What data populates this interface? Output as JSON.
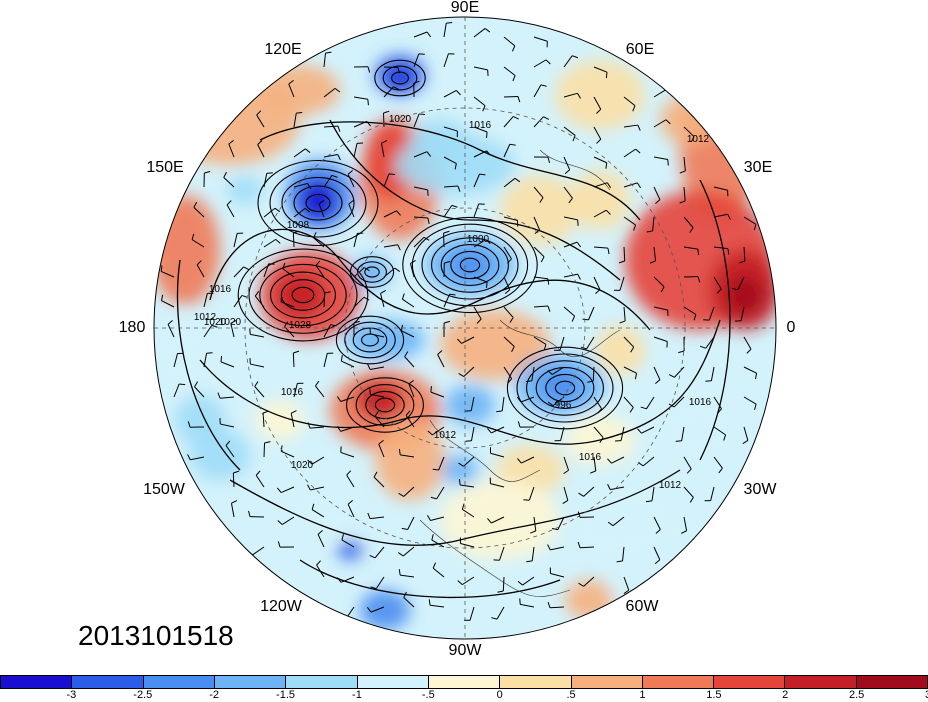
{
  "timestamp": "2013101518",
  "longitude_labels": {
    "lon_90e": "90E",
    "lon_60e": "60E",
    "lon_30e": "30E",
    "lon_0": "0",
    "lon_30w": "30W",
    "lon_60w": "60W",
    "lon_90w": "90W",
    "lon_120w": "120W",
    "lon_150w": "150W",
    "lon_180": "180",
    "lon_150e": "150E",
    "lon_120e": "120E"
  },
  "isobar_labels": [
    "1020",
    "1016",
    "1008",
    "1000",
    "1028",
    "1020",
    "1016",
    "1012",
    "996",
    "1016",
    "1020",
    "1012",
    "1016",
    "1020",
    "1012",
    "1012",
    "1016"
  ],
  "colorbar": {
    "colors": [
      "#1a0fd0",
      "#2b5de8",
      "#4a8df0",
      "#6cb4f5",
      "#9fdcf7",
      "#d4f2fb",
      "#fdf6d4",
      "#fbe0a6",
      "#f6b07e",
      "#ef7a57",
      "#e4443a",
      "#c41e26",
      "#a10b1c"
    ],
    "tick_labels": [
      "-3",
      "-2.5",
      "-2",
      "-1.5",
      "-1",
      "-.5",
      "0",
      ".5",
      "1",
      "1.5",
      "2",
      "2.5",
      "3"
    ]
  }
}
